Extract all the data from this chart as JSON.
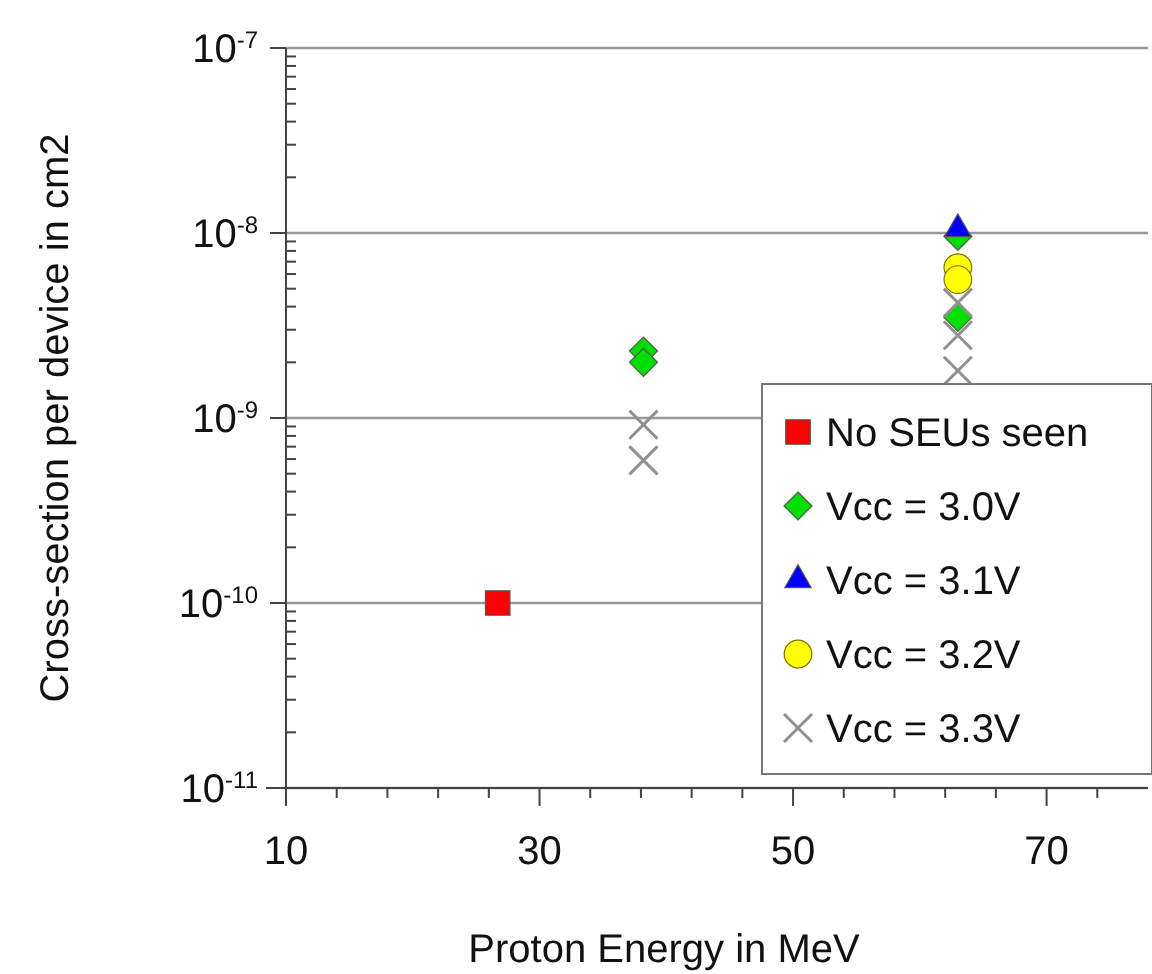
{
  "chart_data": {
    "type": "scatter",
    "xlabel": "Proton Energy in MeV",
    "ylabel": "Cross-section per device in cm2",
    "log": "y",
    "grid": "y",
    "legend": "right",
    "xlim": [
      10,
      78
    ],
    "xticks": [
      10,
      {
        "value": 14,
        "label": null
      },
      {
        "value": 18,
        "label": null
      },
      {
        "value": 22,
        "label": null
      },
      {
        "value": 26,
        "label": null
      },
      30,
      {
        "value": 34,
        "label": null
      },
      {
        "value": 38,
        "label": null
      },
      {
        "value": 42,
        "label": null
      },
      {
        "value": 46,
        "label": null
      },
      50,
      {
        "value": 54,
        "label": null
      },
      {
        "value": 58,
        "label": null
      },
      {
        "value": 62,
        "label": null
      },
      {
        "value": 66,
        "label": null
      },
      70,
      {
        "value": 74,
        "label": null
      }
    ],
    "ylim": [
      1e-11,
      1e-07
    ],
    "yticks": [
      {
        "value": 1e-11,
        "label": "10$^{-11}$"
      },
      {
        "value": 1e-10,
        "label": "10$^{-10}$"
      },
      {
        "value": 1e-09,
        "label": "10$^{-9}$"
      },
      {
        "value": 1e-08,
        "label": "10$^{-8}$"
      },
      {
        "value": 1e-07,
        "label": "10$^{-7}$"
      }
    ],
    "series": [
      {
        "name": "No SEUs seen",
        "color": "#ff0000",
        "marker": "square",
        "x": [
          26.7
        ],
        "values": [
          1e-10
        ]
      },
      {
        "name": "Vcc = 3.0V",
        "color": "#00e000",
        "marker": "diamond",
        "x": [
          38.2,
          38.2,
          63,
          63
        ],
        "values": [
          2.3e-09,
          2e-09,
          3.5e-09,
          9.6e-09
        ]
      },
      {
        "name": "Vcc = 3.1V",
        "color": "#0000ff",
        "marker": "triangle",
        "x": [
          63
        ],
        "values": [
          1.05e-08
        ]
      },
      {
        "name": "Vcc = 3.2V",
        "color": "#ffff00",
        "marker": "circle",
        "x": [
          63,
          63
        ],
        "values": [
          6.5e-09,
          5.6e-09
        ]
      },
      {
        "name": "Vcc = 3.3V",
        "color": "#909090",
        "marker": "cross",
        "x": [
          38.2,
          38.2,
          63,
          63,
          63
        ],
        "values": [
          9.2e-10,
          5.9e-10,
          4.2e-09,
          2.8e-09,
          1.8e-09
        ]
      }
    ]
  }
}
